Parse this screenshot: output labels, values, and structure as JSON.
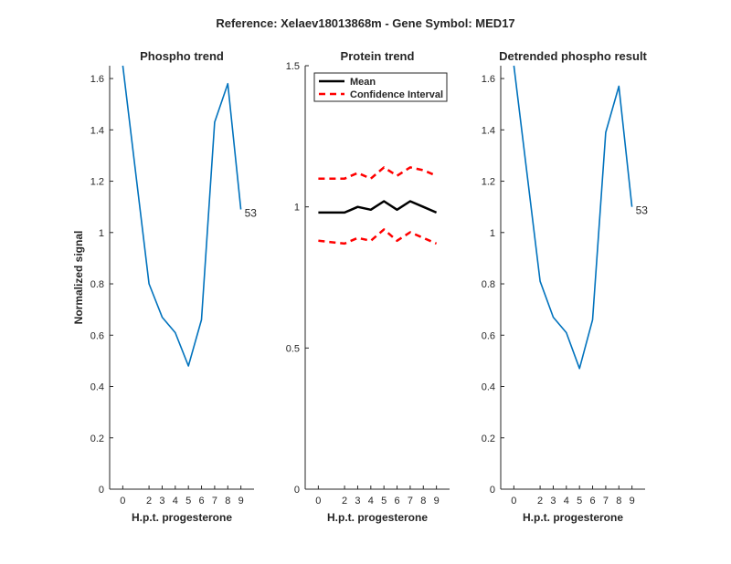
{
  "figure": {
    "suptitle": "Reference:  Xelaev18013868m - Gene Symbol:  MED17"
  },
  "chart_data": [
    {
      "type": "line",
      "title": "Phospho trend",
      "xlabel": "H.p.t. progesterone",
      "ylabel": "Normalized signal",
      "xlim": [
        -1,
        10
      ],
      "ylim": [
        0,
        1.65
      ],
      "xticks": [
        0,
        2,
        3,
        4,
        5,
        6,
        7,
        8,
        9
      ],
      "yticks": [
        0,
        0.2,
        0.4,
        0.6,
        0.8,
        1,
        1.2,
        1.4,
        1.6
      ],
      "series": [
        {
          "color": "#0072BD",
          "x": [
            0,
            2,
            3,
            4,
            5,
            6,
            7,
            8,
            9
          ],
          "y": [
            1.65,
            0.8,
            0.67,
            0.61,
            0.48,
            0.66,
            1.43,
            1.58,
            1.09
          ]
        }
      ],
      "end_label": "53"
    },
    {
      "type": "line",
      "title": "Protein trend",
      "xlabel": "H.p.t. progesterone",
      "ylabel": "",
      "xlim": [
        -1,
        10
      ],
      "ylim": [
        0,
        1.5
      ],
      "xticks": [
        0,
        2,
        3,
        4,
        5,
        6,
        7,
        8,
        9
      ],
      "yticks": [
        0,
        0.5,
        1,
        1.5
      ],
      "legend": {
        "position": "top-right",
        "entries": [
          {
            "label": "Mean",
            "color": "#000000",
            "style": "solid"
          },
          {
            "label": "Confidence Interval",
            "color": "#FF0000",
            "style": "dashed"
          }
        ]
      },
      "series": [
        {
          "name": "Mean",
          "color": "#000000",
          "style": "solid",
          "x": [
            0,
            2,
            3,
            4,
            5,
            6,
            7,
            8,
            9
          ],
          "y": [
            0.98,
            0.98,
            1.0,
            0.99,
            1.02,
            0.99,
            1.02,
            1.0,
            0.98
          ]
        },
        {
          "name": "Confidence Interval",
          "color": "#FF0000",
          "style": "dashed",
          "x": [
            0,
            2,
            3,
            4,
            5,
            6,
            7,
            8,
            9
          ],
          "y": [
            1.1,
            1.1,
            1.12,
            1.1,
            1.14,
            1.11,
            1.14,
            1.13,
            1.11
          ]
        },
        {
          "name": "Confidence Interval",
          "color": "#FF0000",
          "style": "dashed",
          "x": [
            0,
            2,
            3,
            4,
            5,
            6,
            7,
            8,
            9
          ],
          "y": [
            0.88,
            0.87,
            0.89,
            0.88,
            0.92,
            0.88,
            0.91,
            0.89,
            0.87
          ]
        }
      ]
    },
    {
      "type": "line",
      "title": "Detrended phospho result",
      "xlabel": "H.p.t. progesterone",
      "ylabel": "",
      "xlim": [
        -1,
        10
      ],
      "ylim": [
        0,
        1.65
      ],
      "xticks": [
        0,
        2,
        3,
        4,
        5,
        6,
        7,
        8,
        9
      ],
      "yticks": [
        0,
        0.2,
        0.4,
        0.6,
        0.8,
        1,
        1.2,
        1.4,
        1.6
      ],
      "series": [
        {
          "color": "#0072BD",
          "x": [
            0,
            2,
            3,
            4,
            5,
            6,
            7,
            8,
            9
          ],
          "y": [
            1.65,
            0.81,
            0.67,
            0.61,
            0.47,
            0.66,
            1.39,
            1.57,
            1.1
          ]
        }
      ],
      "end_label": "53"
    }
  ]
}
